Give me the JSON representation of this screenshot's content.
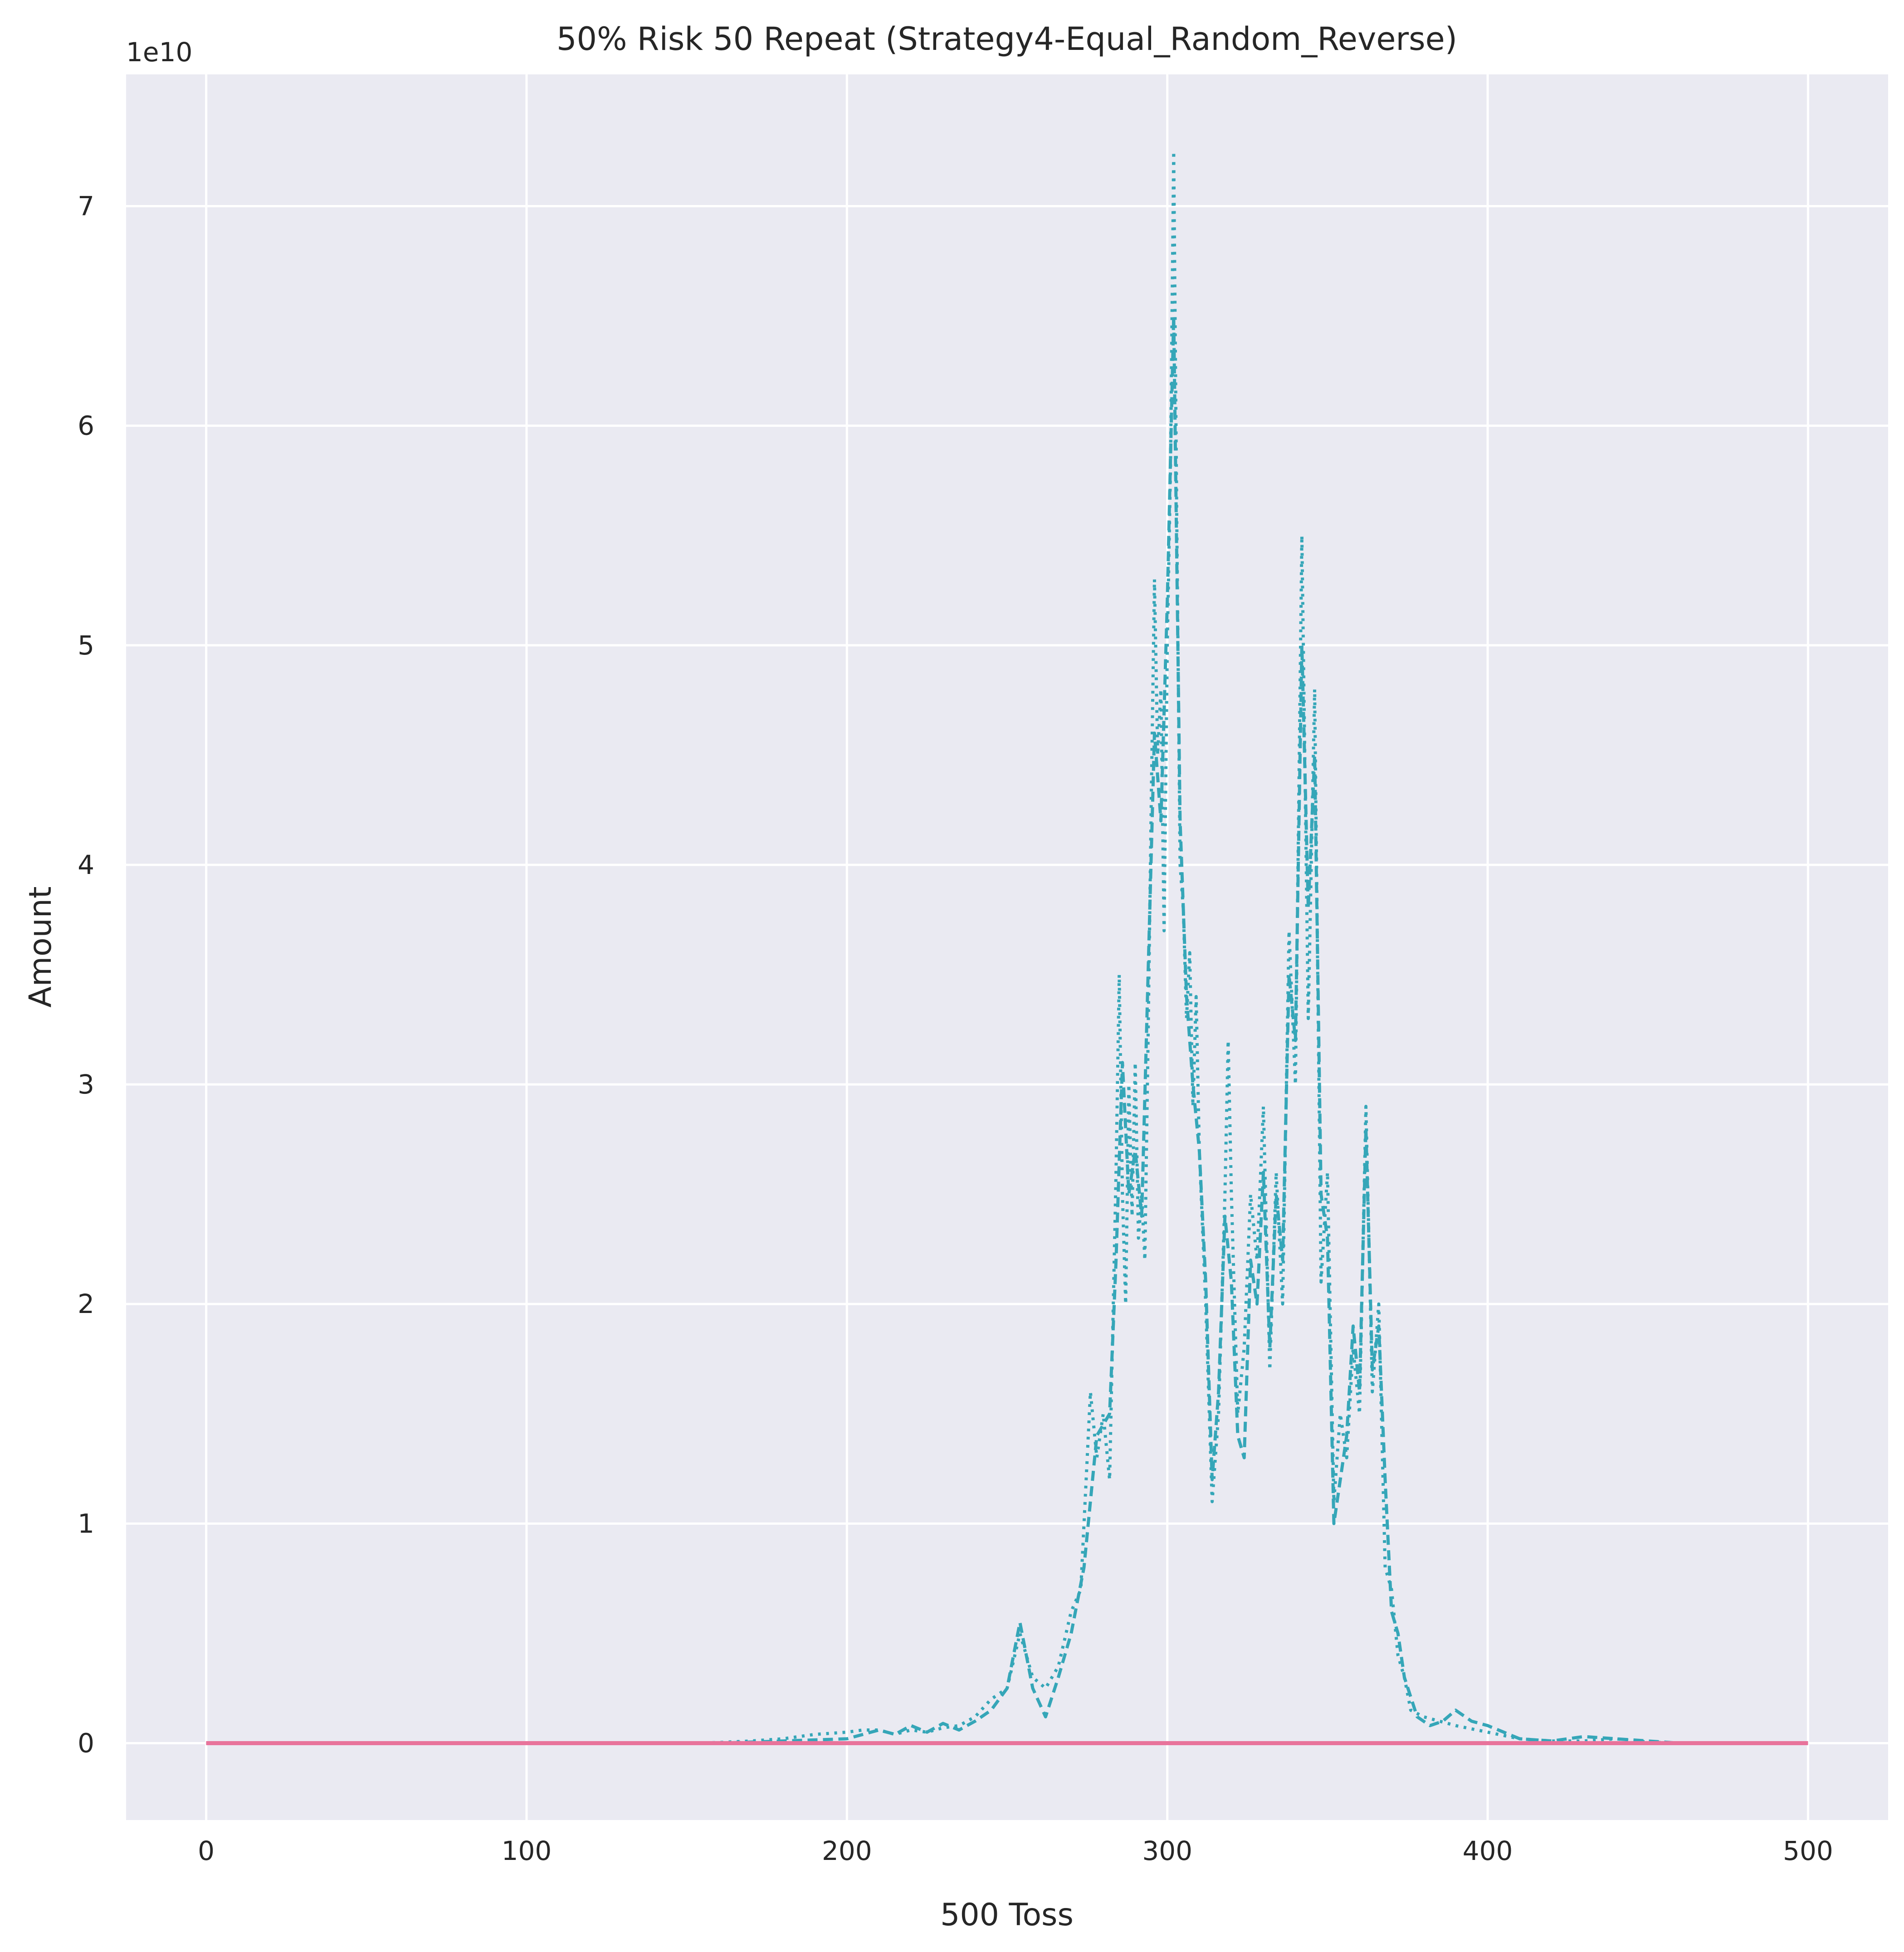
{
  "chart_data": {
    "type": "line",
    "title": "50% Risk 50 Repeat (Strategy4-Equal_Random_Reverse)",
    "xlabel": "500 Toss",
    "ylabel": "Amount",
    "y_multiplier": "1e10",
    "xlim": [
      -25,
      525
    ],
    "ylim": [
      -0.35,
      7.6
    ],
    "x_ticks": [
      0,
      100,
      200,
      300,
      400,
      500
    ],
    "y_ticks": [
      0,
      1,
      2,
      3,
      4,
      5,
      6,
      7
    ],
    "grid": true,
    "background": "#eaeaf2",
    "series": [
      {
        "style": "dotted",
        "color": "#35a6b8",
        "points": [
          [
            0,
            0
          ],
          [
            150,
            0
          ],
          [
            160,
            0.003
          ],
          [
            170,
            0.01
          ],
          [
            180,
            0.02
          ],
          [
            190,
            0.04
          ],
          [
            200,
            0.05
          ],
          [
            205,
            0.06
          ],
          [
            210,
            0.06
          ],
          [
            215,
            0.04
          ],
          [
            220,
            0.06
          ],
          [
            225,
            0.05
          ],
          [
            230,
            0.07
          ],
          [
            235,
            0.08
          ],
          [
            240,
            0.12
          ],
          [
            245,
            0.2
          ],
          [
            250,
            0.25
          ],
          [
            254,
            0.5
          ],
          [
            258,
            0.3
          ],
          [
            262,
            0.25
          ],
          [
            266,
            0.35
          ],
          [
            270,
            0.6
          ],
          [
            273,
            0.7
          ],
          [
            276,
            1.6
          ],
          [
            278,
            1.3
          ],
          [
            280,
            1.5
          ],
          [
            282,
            1.2
          ],
          [
            284,
            2.6
          ],
          [
            285,
            3.5
          ],
          [
            286,
            2.5
          ],
          [
            287,
            2.0
          ],
          [
            288,
            3.0
          ],
          [
            289,
            2.4
          ],
          [
            290,
            3.1
          ],
          [
            291,
            2.3
          ],
          [
            292,
            2.5
          ],
          [
            293,
            2.2
          ],
          [
            294,
            3.2
          ],
          [
            295,
            4.3
          ],
          [
            296,
            5.3
          ],
          [
            297,
            4.5
          ],
          [
            298,
            4.8
          ],
          [
            299,
            3.7
          ],
          [
            300,
            5.0
          ],
          [
            301,
            5.8
          ],
          [
            302,
            7.25
          ],
          [
            303,
            5.5
          ],
          [
            304,
            4.0
          ],
          [
            305,
            3.8
          ],
          [
            306,
            3.3
          ],
          [
            307,
            3.6
          ],
          [
            308,
            2.9
          ],
          [
            309,
            3.4
          ],
          [
            310,
            2.7
          ],
          [
            312,
            2.0
          ],
          [
            314,
            1.1
          ],
          [
            316,
            1.5
          ],
          [
            318,
            2.5
          ],
          [
            319,
            3.2
          ],
          [
            320,
            2.5
          ],
          [
            322,
            1.5
          ],
          [
            324,
            1.8
          ],
          [
            326,
            2.5
          ],
          [
            328,
            2.2
          ],
          [
            330,
            2.9
          ],
          [
            332,
            1.7
          ],
          [
            334,
            2.6
          ],
          [
            336,
            2.0
          ],
          [
            338,
            3.7
          ],
          [
            340,
            3.0
          ],
          [
            342,
            5.5
          ],
          [
            344,
            3.3
          ],
          [
            346,
            4.8
          ],
          [
            348,
            2.1
          ],
          [
            350,
            2.6
          ],
          [
            352,
            1.1
          ],
          [
            354,
            1.5
          ],
          [
            356,
            1.3
          ],
          [
            358,
            1.8
          ],
          [
            360,
            1.5
          ],
          [
            362,
            2.9
          ],
          [
            364,
            1.6
          ],
          [
            366,
            2.0
          ],
          [
            368,
            0.8
          ],
          [
            370,
            0.7
          ],
          [
            372,
            0.4
          ],
          [
            374,
            0.3
          ],
          [
            376,
            0.15
          ],
          [
            380,
            0.12
          ],
          [
            385,
            0.1
          ],
          [
            390,
            0.08
          ],
          [
            400,
            0.05
          ],
          [
            410,
            0.02
          ],
          [
            420,
            0.01
          ],
          [
            430,
            0.01
          ],
          [
            440,
            0.02
          ],
          [
            450,
            0.005
          ],
          [
            460,
            0
          ],
          [
            500,
            0
          ]
        ]
      },
      {
        "style": "dashed",
        "color": "#35a6b8",
        "points": [
          [
            0,
            0
          ],
          [
            160,
            0
          ],
          [
            180,
            0.01
          ],
          [
            200,
            0.02
          ],
          [
            210,
            0.06
          ],
          [
            215,
            0.04
          ],
          [
            220,
            0.08
          ],
          [
            225,
            0.05
          ],
          [
            230,
            0.09
          ],
          [
            235,
            0.06
          ],
          [
            240,
            0.1
          ],
          [
            245,
            0.15
          ],
          [
            250,
            0.25
          ],
          [
            254,
            0.55
          ],
          [
            258,
            0.25
          ],
          [
            262,
            0.12
          ],
          [
            266,
            0.3
          ],
          [
            270,
            0.5
          ],
          [
            274,
            0.8
          ],
          [
            278,
            1.4
          ],
          [
            282,
            1.5
          ],
          [
            284,
            2.2
          ],
          [
            286,
            3.1
          ],
          [
            288,
            2.5
          ],
          [
            290,
            2.7
          ],
          [
            292,
            2.4
          ],
          [
            294,
            3.5
          ],
          [
            296,
            4.6
          ],
          [
            298,
            4.2
          ],
          [
            300,
            5.2
          ],
          [
            302,
            6.5
          ],
          [
            304,
            4.2
          ],
          [
            306,
            3.4
          ],
          [
            308,
            3.0
          ],
          [
            310,
            2.7
          ],
          [
            312,
            2.1
          ],
          [
            314,
            1.2
          ],
          [
            316,
            1.6
          ],
          [
            318,
            2.4
          ],
          [
            320,
            2.1
          ],
          [
            322,
            1.4
          ],
          [
            324,
            1.3
          ],
          [
            326,
            2.2
          ],
          [
            328,
            2.0
          ],
          [
            330,
            2.6
          ],
          [
            332,
            1.8
          ],
          [
            334,
            2.5
          ],
          [
            336,
            2.2
          ],
          [
            338,
            3.5
          ],
          [
            340,
            3.2
          ],
          [
            342,
            5.0
          ],
          [
            344,
            3.8
          ],
          [
            346,
            4.5
          ],
          [
            348,
            2.5
          ],
          [
            350,
            2.3
          ],
          [
            352,
            1.0
          ],
          [
            354,
            1.2
          ],
          [
            356,
            1.4
          ],
          [
            358,
            1.9
          ],
          [
            360,
            1.6
          ],
          [
            362,
            2.8
          ],
          [
            364,
            1.7
          ],
          [
            366,
            1.9
          ],
          [
            368,
            1.2
          ],
          [
            370,
            0.6
          ],
          [
            372,
            0.5
          ],
          [
            374,
            0.3
          ],
          [
            378,
            0.12
          ],
          [
            382,
            0.08
          ],
          [
            386,
            0.1
          ],
          [
            390,
            0.15
          ],
          [
            395,
            0.1
          ],
          [
            400,
            0.08
          ],
          [
            405,
            0.05
          ],
          [
            410,
            0.02
          ],
          [
            420,
            0.01
          ],
          [
            430,
            0.03
          ],
          [
            440,
            0.02
          ],
          [
            450,
            0.01
          ],
          [
            460,
            0
          ],
          [
            500,
            0
          ]
        ]
      },
      {
        "style": "solid",
        "color": "#e8739b",
        "points": [
          [
            0,
            0
          ],
          [
            500,
            0
          ]
        ]
      }
    ]
  }
}
